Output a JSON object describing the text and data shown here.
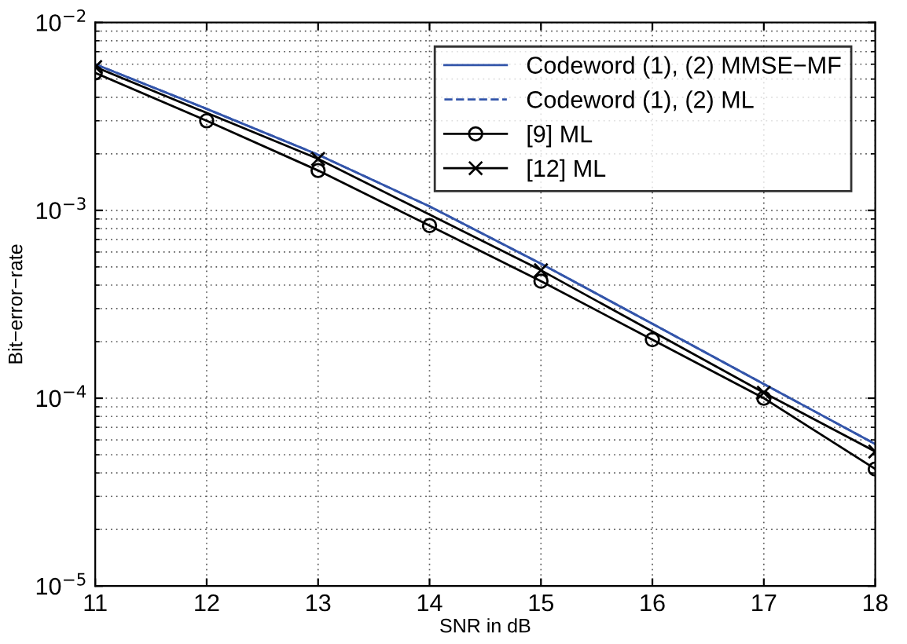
{
  "chart_data": {
    "type": "line",
    "xlabel": "SNR in dB",
    "ylabel": "Bit−error−rate",
    "log": "y",
    "grid": true,
    "legend": "top right",
    "xlim": [
      11,
      18
    ],
    "xticks": [
      11,
      12,
      13,
      14,
      15,
      16,
      17,
      18
    ],
    "ylim": [
      1e-05,
      0.01
    ],
    "yticks": [
      {
        "value": 1e-05,
        "label": "10$^{−5}$"
      },
      {
        "value": 0.0001,
        "label": "10$^{−4}$"
      },
      {
        "value": 0.001,
        "label": "10$^{−3}$"
      },
      {
        "value": 0.01,
        "label": "10$^{−2}$"
      }
    ],
    "series": [
      {
        "name": "Codeword (1), (2) MMSE−MF",
        "color": "#3355aa",
        "marker": "none",
        "line_style": "solid",
        "x": [
          11,
          12,
          13,
          14,
          15,
          16,
          17,
          18
        ],
        "values": [
          0.006,
          0.00347,
          0.00198,
          0.00105,
          0.00052,
          0.000249,
          0.000119,
          5.7e-05
        ]
      },
      {
        "name": "Codeword (1), (2) ML",
        "color": "#3355aa",
        "marker": "none",
        "line_style": "dashed",
        "x": [
          11,
          12,
          13,
          14,
          15,
          16,
          17,
          18
        ],
        "values": [
          0.006,
          0.00347,
          0.00198,
          0.00105,
          0.00052,
          0.000249,
          0.000119,
          5.7e-05
        ]
      },
      {
        "name": "[9] ML",
        "color": "#000000",
        "marker": "circle",
        "line_style": "solid",
        "x": [
          11,
          12,
          13,
          14,
          15,
          16,
          17,
          18
        ],
        "values": [
          0.0054,
          0.003,
          0.00163,
          0.00083,
          0.00042,
          0.000205,
          0.0001,
          4.2e-05
        ]
      },
      {
        "name": "[12] ML",
        "color": "#000000",
        "marker": "cross",
        "line_style": "solid",
        "x": [
          11,
          13,
          15,
          17,
          18
        ],
        "values": [
          0.0058,
          0.00188,
          0.00048,
          0.000107,
          5.2e-05
        ]
      }
    ]
  }
}
